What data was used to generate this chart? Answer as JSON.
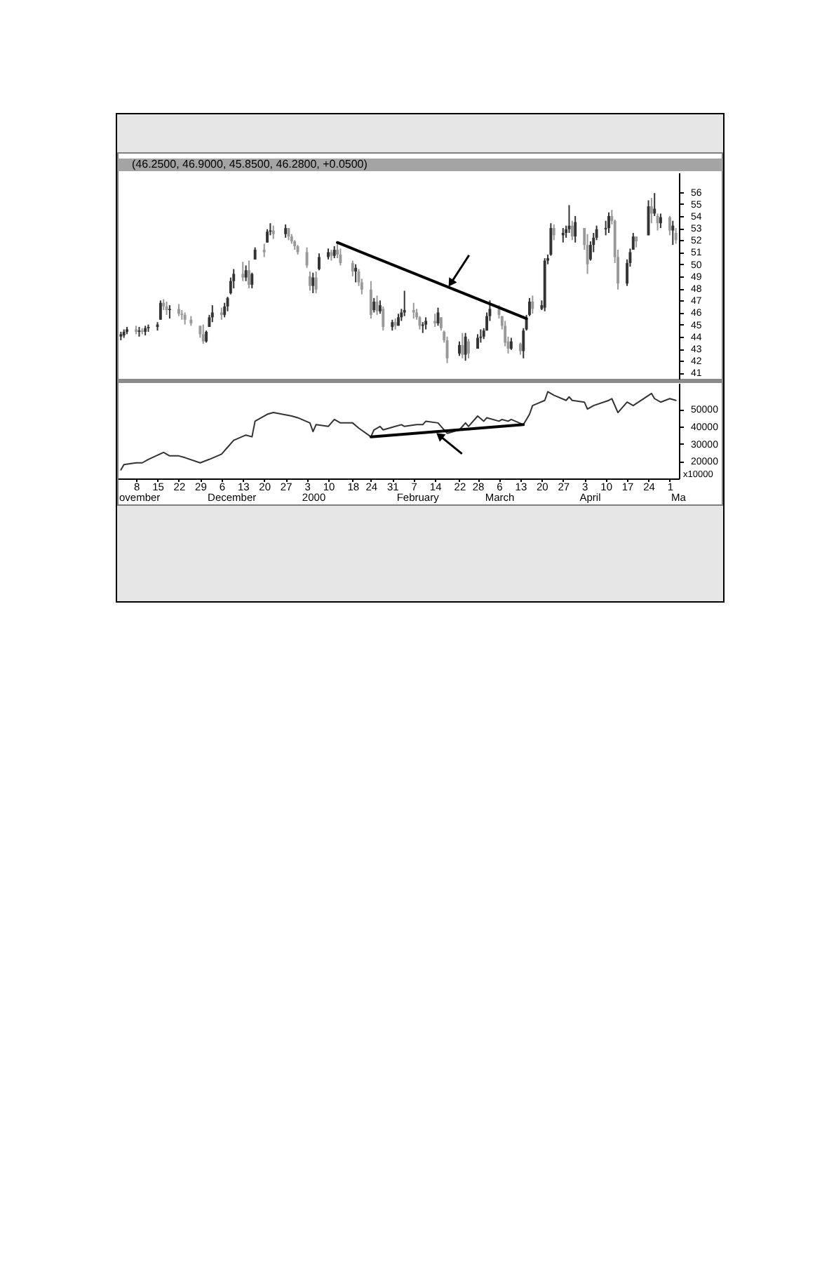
{
  "chart_data": [
    {
      "type": "candlestick",
      "title": "(46.2500, 46.9000, 45.8500, 46.2800, +0.0500)",
      "tick_labels": "y",
      "xlim": [
        "1999-11-02",
        "2000-05-04"
      ],
      "x": [
        "1999-11-03",
        "1999-11-04",
        "1999-11-05",
        "1999-11-08",
        "1999-11-09",
        "1999-11-10",
        "1999-11-11",
        "1999-11-12",
        "1999-11-15",
        "1999-11-16",
        "1999-11-17",
        "1999-11-18",
        "1999-11-19",
        "1999-11-22",
        "1999-11-23",
        "1999-11-24",
        "1999-11-26",
        "1999-11-29",
        "1999-11-30",
        "1999-12-01",
        "1999-12-02",
        "1999-12-03",
        "1999-12-06",
        "1999-12-07",
        "1999-12-08",
        "1999-12-09",
        "1999-12-10",
        "1999-12-13",
        "1999-12-14",
        "1999-12-15",
        "1999-12-16",
        "1999-12-17",
        "1999-12-20",
        "1999-12-21",
        "1999-12-22",
        "1999-12-23",
        "1999-12-27",
        "1999-12-28",
        "1999-12-29",
        "1999-12-30",
        "1999-12-31",
        "2000-01-03",
        "2000-01-04",
        "2000-01-05",
        "2000-01-06",
        "2000-01-07",
        "2000-01-10",
        "2000-01-11",
        "2000-01-12",
        "2000-01-13",
        "2000-01-14",
        "2000-01-18",
        "2000-01-19",
        "2000-01-20",
        "2000-01-21",
        "2000-01-24",
        "2000-01-25",
        "2000-01-26",
        "2000-01-27",
        "2000-01-28",
        "2000-01-31",
        "2000-02-01",
        "2000-02-02",
        "2000-02-03",
        "2000-02-04",
        "2000-02-07",
        "2000-02-08",
        "2000-02-09",
        "2000-02-10",
        "2000-02-11",
        "2000-02-14",
        "2000-02-15",
        "2000-02-16",
        "2000-02-17",
        "2000-02-18",
        "2000-02-22",
        "2000-02-23",
        "2000-02-24",
        "2000-02-25",
        "2000-02-28",
        "2000-02-29",
        "2000-03-01",
        "2000-03-02",
        "2000-03-03",
        "2000-03-06",
        "2000-03-07",
        "2000-03-08",
        "2000-03-09",
        "2000-03-10",
        "2000-03-13",
        "2000-03-14",
        "2000-03-15",
        "2000-03-16",
        "2000-03-17",
        "2000-03-20",
        "2000-03-21",
        "2000-03-22",
        "2000-03-23",
        "2000-03-24",
        "2000-03-27",
        "2000-03-28",
        "2000-03-29",
        "2000-03-30",
        "2000-03-31",
        "2000-04-03",
        "2000-04-04",
        "2000-04-05",
        "2000-04-06",
        "2000-04-07",
        "2000-04-10",
        "2000-04-11",
        "2000-04-12",
        "2000-04-13",
        "2000-04-14",
        "2000-04-17",
        "2000-04-18",
        "2000-04-19",
        "2000-04-20",
        "2000-04-24",
        "2000-04-25",
        "2000-04-26",
        "2000-04-27",
        "2000-04-28",
        "2000-05-01",
        "2000-05-02",
        "2000-05-03"
      ],
      "ohlc": [
        [
          44.0,
          44.4,
          43.7,
          44.2
        ],
        [
          44.1,
          44.6,
          43.9,
          44.4
        ],
        [
          44.4,
          44.8,
          44.2,
          44.6
        ],
        [
          44.6,
          44.9,
          44.2,
          44.4
        ],
        [
          44.4,
          44.8,
          44.0,
          44.5
        ],
        [
          44.5,
          44.7,
          44.2,
          44.4
        ],
        [
          44.4,
          44.9,
          44.1,
          44.7
        ],
        [
          44.7,
          45.0,
          44.4,
          44.8
        ],
        [
          44.8,
          45.2,
          44.5,
          45.0
        ],
        [
          45.4,
          47.0,
          45.4,
          46.8
        ],
        [
          46.8,
          47.1,
          46.2,
          46.5
        ],
        [
          46.5,
          46.9,
          45.8,
          46.2
        ],
        [
          46.2,
          46.6,
          45.5,
          46.3
        ],
        [
          46.3,
          46.7,
          45.7,
          45.9
        ],
        [
          45.9,
          46.2,
          45.4,
          45.8
        ],
        [
          45.8,
          46.0,
          45.0,
          45.4
        ],
        [
          45.4,
          45.7,
          44.9,
          45.1
        ],
        [
          44.9,
          44.9,
          43.9,
          44.2
        ],
        [
          44.2,
          45.0,
          43.4,
          43.6
        ],
        [
          43.6,
          44.5,
          43.5,
          44.4
        ],
        [
          44.8,
          45.8,
          44.8,
          45.6
        ],
        [
          45.6,
          46.6,
          45.2,
          46.0
        ],
        [
          46.0,
          46.4,
          45.4,
          45.8
        ],
        [
          45.8,
          46.8,
          45.6,
          46.5
        ],
        [
          46.5,
          47.3,
          46.1,
          47.2
        ],
        [
          47.6,
          48.9,
          47.5,
          48.6
        ],
        [
          48.6,
          49.6,
          48.0,
          49.2
        ],
        [
          49.2,
          50.2,
          48.6,
          48.9
        ],
        [
          48.9,
          49.9,
          48.6,
          49.5
        ],
        [
          49.5,
          50.3,
          48.0,
          48.3
        ],
        [
          48.3,
          49.3,
          48.0,
          49.2
        ],
        [
          50.4,
          51.4,
          50.4,
          51.2
        ],
        [
          51.2,
          51.7,
          50.6,
          51.0
        ],
        [
          51.8,
          52.9,
          51.8,
          52.7
        ],
        [
          52.7,
          53.4,
          52.4,
          52.8
        ],
        [
          52.8,
          53.2,
          52.1,
          52.5
        ],
        [
          52.5,
          53.3,
          52.2,
          53.0
        ],
        [
          53.0,
          53.0,
          52.0,
          52.3
        ],
        [
          52.3,
          52.5,
          51.7,
          51.9
        ],
        [
          51.9,
          52.0,
          51.2,
          51.5
        ],
        [
          51.5,
          51.6,
          50.8,
          51.0
        ],
        [
          51.0,
          51.4,
          49.7,
          49.9
        ],
        [
          49.0,
          49.4,
          47.8,
          48.2
        ],
        [
          48.2,
          49.3,
          47.6,
          48.9
        ],
        [
          48.9,
          49.4,
          47.6,
          47.9
        ],
        [
          49.6,
          50.9,
          49.5,
          50.6
        ],
        [
          50.6,
          51.3,
          50.4,
          51.0
        ],
        [
          51.0,
          51.2,
          50.3,
          50.7
        ],
        [
          50.7,
          51.5,
          50.5,
          51.2
        ],
        [
          51.2,
          51.8,
          50.5,
          50.8
        ],
        [
          50.8,
          51.3,
          49.9,
          50.1
        ],
        [
          50.1,
          50.3,
          49.0,
          49.4
        ],
        [
          49.4,
          50.0,
          48.5,
          49.7
        ],
        [
          49.4,
          49.6,
          48.2,
          48.5
        ],
        [
          48.5,
          48.8,
          47.5,
          47.9
        ],
        [
          47.9,
          48.6,
          45.5,
          45.8
        ],
        [
          46.2,
          47.2,
          46.0,
          46.9
        ],
        [
          46.9,
          47.4,
          45.8,
          46.1
        ],
        [
          46.1,
          47.0,
          45.9,
          46.6
        ],
        [
          46.3,
          46.5,
          44.5,
          44.8
        ],
        [
          44.8,
          45.4,
          44.5,
          45.2
        ],
        [
          45.2,
          45.5,
          44.6,
          44.9
        ],
        [
          44.9,
          45.9,
          44.9,
          45.6
        ],
        [
          45.6,
          46.3,
          45.3,
          46.0
        ],
        [
          46.0,
          47.8,
          45.7,
          46.2
        ],
        [
          46.2,
          46.8,
          45.5,
          46.0
        ],
        [
          46.0,
          46.3,
          45.4,
          45.6
        ],
        [
          45.6,
          45.7,
          44.6,
          44.9
        ],
        [
          44.9,
          45.2,
          44.3,
          45.0
        ],
        [
          45.0,
          45.6,
          44.6,
          45.3
        ],
        [
          45.3,
          45.9,
          44.8,
          45.1
        ],
        [
          45.1,
          46.4,
          44.9,
          46.0
        ],
        [
          45.6,
          45.6,
          44.5,
          44.7
        ],
        [
          44.4,
          44.5,
          43.5,
          43.7
        ],
        [
          43.7,
          44.0,
          41.8,
          42.2
        ],
        [
          42.6,
          43.6,
          42.4,
          43.3
        ],
        [
          43.3,
          44.3,
          42.2,
          42.5
        ],
        [
          42.5,
          44.3,
          42.0,
          44.0
        ],
        [
          43.6,
          43.8,
          42.2,
          42.6
        ],
        [
          43.0,
          44.2,
          43.0,
          43.9
        ],
        [
          43.9,
          44.6,
          43.5,
          44.0
        ],
        [
          44.0,
          44.7,
          43.8,
          44.5
        ],
        [
          44.5,
          46.0,
          44.5,
          45.7
        ],
        [
          45.7,
          47.0,
          45.3,
          46.3
        ],
        [
          46.3,
          46.6,
          45.5,
          45.8
        ],
        [
          45.7,
          45.7,
          44.6,
          44.9
        ],
        [
          44.9,
          45.3,
          43.2,
          43.5
        ],
        [
          43.6,
          44.0,
          42.6,
          43.0
        ],
        [
          43.0,
          43.9,
          42.9,
          43.6
        ],
        [
          43.4,
          43.5,
          42.5,
          42.8
        ],
        [
          42.8,
          44.7,
          42.2,
          44.5
        ],
        [
          44.6,
          45.8,
          44.5,
          45.5
        ],
        [
          45.8,
          47.2,
          45.7,
          46.9
        ],
        [
          46.9,
          47.4,
          45.9,
          46.3
        ],
        [
          46.3,
          47.0,
          46.2,
          46.6
        ],
        [
          46.4,
          50.5,
          46.1,
          50.3
        ],
        [
          50.3,
          50.8,
          50.0,
          50.5
        ],
        [
          50.8,
          53.4,
          50.7,
          53.0
        ],
        [
          53.0,
          53.3,
          52.0,
          52.4
        ],
        [
          52.4,
          53.0,
          51.8,
          52.6
        ],
        [
          52.6,
          53.2,
          52.2,
          52.9
        ],
        [
          52.9,
          54.9,
          52.6,
          53.2
        ],
        [
          53.2,
          53.6,
          52.0,
          52.3
        ],
        [
          52.3,
          54.0,
          51.8,
          53.5
        ],
        [
          53.0,
          53.0,
          51.2,
          51.6
        ],
        [
          51.6,
          52.5,
          49.2,
          50.0
        ],
        [
          50.4,
          51.9,
          50.3,
          51.6
        ],
        [
          51.6,
          52.6,
          51.0,
          52.2
        ],
        [
          52.2,
          53.2,
          52.0,
          52.9
        ],
        [
          52.9,
          53.6,
          52.4,
          53.0
        ],
        [
          53.0,
          54.3,
          52.6,
          54.0
        ],
        [
          54.0,
          54.5,
          53.3,
          53.6
        ],
        [
          53.6,
          53.7,
          50.1,
          50.6
        ],
        [
          50.6,
          51.2,
          47.9,
          48.4
        ],
        [
          48.4,
          50.4,
          48.2,
          50.1
        ],
        [
          50.1,
          51.3,
          49.8,
          51.0
        ],
        [
          51.2,
          52.6,
          51.2,
          52.3
        ],
        [
          52.3,
          52.3,
          51.4,
          51.9
        ],
        [
          52.4,
          55.3,
          52.4,
          54.8
        ],
        [
          54.8,
          55.5,
          53.4,
          54.2
        ],
        [
          54.2,
          55.9,
          54.0,
          54.6
        ],
        [
          54.0,
          54.2,
          52.8,
          53.4
        ],
        [
          53.4,
          54.2,
          53.0,
          53.9
        ],
        [
          53.9,
          54.0,
          52.4,
          52.8
        ],
        [
          52.8,
          53.6,
          51.6,
          53.2
        ],
        [
          52.6,
          53.0,
          51.7,
          52.0
        ]
      ],
      "colors": [
        "#333333",
        "#333333",
        "#333333",
        "#999999",
        "#333333",
        "#999999",
        "#333333",
        "#333333",
        "#333333",
        "#333333",
        "#999999",
        "#999999",
        "#333333",
        "#999999",
        "#999999",
        "#999999",
        "#999999",
        "#999999",
        "#999999",
        "#333333",
        "#333333",
        "#333333",
        "#999999",
        "#333333",
        "#333333",
        "#333333",
        "#333333",
        "#999999",
        "#333333",
        "#999999",
        "#333333",
        "#333333",
        "#999999",
        "#333333",
        "#333333",
        "#999999",
        "#333333",
        "#999999",
        "#999999",
        "#999999",
        "#999999",
        "#999999",
        "#999999",
        "#333333",
        "#999999",
        "#333333",
        "#333333",
        "#999999",
        "#333333",
        "#999999",
        "#999999",
        "#999999",
        "#333333",
        "#999999",
        "#999999",
        "#999999",
        "#333333",
        "#999999",
        "#333333",
        "#999999",
        "#333333",
        "#999999",
        "#333333",
        "#333333",
        "#333333",
        "#999999",
        "#999999",
        "#999999",
        "#333333",
        "#333333",
        "#999999",
        "#333333",
        "#999999",
        "#999999",
        "#999999",
        "#333333",
        "#999999",
        "#333333",
        "#999999",
        "#333333",
        "#333333",
        "#333333",
        "#333333",
        "#333333",
        "#999999",
        "#999999",
        "#999999",
        "#999999",
        "#333333",
        "#999999",
        "#333333",
        "#333333",
        "#333333",
        "#999999",
        "#333333",
        "#333333",
        "#333333",
        "#333333",
        "#999999",
        "#333333",
        "#333333",
        "#333333",
        "#999999",
        "#333333",
        "#999999",
        "#999999",
        "#333333",
        "#333333",
        "#333333",
        "#333333",
        "#333333",
        "#999999",
        "#999999",
        "#999999",
        "#333333",
        "#333333",
        "#333333",
        "#999999",
        "#333333",
        "#999999",
        "#333333",
        "#999999",
        "#333333",
        "#999999",
        "#333333",
        "#999999"
      ],
      "series": [
        {
          "type": "line",
          "color": "#000000",
          "x": [
            "2000-01-13",
            "2000-03-15"
          ],
          "values": [
            51.8,
            45.5
          ]
        }
      ],
      "ylim": [
        40.5,
        57.6
      ],
      "yticks": [
        41,
        42,
        43,
        44,
        45,
        46,
        47,
        48,
        49,
        50,
        51,
        52,
        53,
        54,
        55,
        56
      ]
    },
    {
      "type": "line",
      "xlim": [
        "1999-11-02",
        "2000-05-04"
      ],
      "series": [
        {
          "type": "line",
          "color": "#333333",
          "x": [
            "1999-11-03",
            "1999-11-04",
            "1999-11-08",
            "1999-11-10",
            "1999-11-12",
            "1999-11-17",
            "1999-11-19",
            "1999-11-22",
            "1999-11-24",
            "1999-11-29",
            "1999-12-02",
            "1999-12-06",
            "1999-12-08",
            "1999-12-10",
            "1999-12-14",
            "1999-12-16",
            "1999-12-17",
            "1999-12-21",
            "1999-12-23",
            "1999-12-29",
            "1999-12-31",
            "2000-01-04",
            "2000-01-05",
            "2000-01-06",
            "2000-01-10",
            "2000-01-12",
            "2000-01-14",
            "2000-01-18",
            "2000-01-20",
            "2000-01-24",
            "2000-01-25",
            "2000-01-27",
            "2000-01-28",
            "2000-02-01",
            "2000-02-03",
            "2000-02-04",
            "2000-02-08",
            "2000-02-10",
            "2000-02-11",
            "2000-02-15",
            "2000-02-16",
            "2000-02-18",
            "2000-02-22",
            "2000-02-24",
            "2000-02-25",
            "2000-02-28",
            "2000-03-01",
            "2000-03-02",
            "2000-03-06",
            "2000-03-07",
            "2000-03-09",
            "2000-03-10",
            "2000-03-14",
            "2000-03-16",
            "2000-03-17",
            "2000-03-21",
            "2000-03-22",
            "2000-03-24",
            "2000-03-28",
            "2000-03-29",
            "2000-03-30",
            "2000-04-03",
            "2000-04-04",
            "2000-04-06",
            "2000-04-11",
            "2000-04-12",
            "2000-04-14",
            "2000-04-17",
            "2000-04-19",
            "2000-04-25",
            "2000-04-26",
            "2000-04-28",
            "2000-05-01",
            "2000-05-03"
          ],
          "values": [
            15000,
            18000,
            19000,
            19000,
            21000,
            25000,
            23000,
            23000,
            22000,
            19000,
            21000,
            24000,
            28000,
            32000,
            35000,
            34000,
            43000,
            47000,
            48000,
            46000,
            45000,
            42000,
            37000,
            41000,
            40000,
            44000,
            42000,
            42000,
            39000,
            34000,
            38000,
            40000,
            38000,
            40000,
            41000,
            40000,
            41000,
            41000,
            43000,
            42000,
            40000,
            36000,
            38000,
            42000,
            40000,
            46000,
            43000,
            45000,
            43000,
            44000,
            43000,
            44000,
            41000,
            47000,
            52000,
            55000,
            60000,
            58000,
            55000,
            57000,
            55000,
            54000,
            50000,
            52000,
            55000,
            56000,
            48000,
            54000,
            52000,
            59000,
            56000,
            54000,
            56000,
            55000
          ]
        },
        {
          "type": "line",
          "color": "#000000",
          "x": [
            "2000-01-24",
            "2000-03-14"
          ],
          "values": [
            34000,
            41000
          ]
        }
      ],
      "ylim": [
        10000,
        65000
      ],
      "yticks": [
        20000,
        30000,
        40000,
        50000
      ],
      "xticks": [
        {
          "value": "1999-11-08",
          "label": "8"
        },
        {
          "value": "1999-11-15",
          "label": "15"
        },
        {
          "value": "1999-11-22",
          "label": "22"
        },
        {
          "value": "1999-11-29",
          "label": "29"
        },
        {
          "value": "1999-12-06",
          "label": "6"
        },
        {
          "value": "1999-12-13",
          "label": "13"
        },
        {
          "value": "1999-12-20",
          "label": "20"
        },
        {
          "value": "1999-12-27",
          "label": "27"
        },
        {
          "value": "2000-01-03",
          "label": "3"
        },
        {
          "value": "2000-01-10",
          "label": "10"
        },
        {
          "value": "2000-01-18",
          "label": "18"
        },
        {
          "value": "2000-01-24",
          "label": "24"
        },
        {
          "value": "2000-01-31",
          "label": "31"
        },
        {
          "value": "2000-02-07",
          "label": "7"
        },
        {
          "value": "2000-02-14",
          "label": "14"
        },
        {
          "value": "2000-02-22",
          "label": "22"
        },
        {
          "value": "2000-02-28",
          "label": "28"
        },
        {
          "value": "2000-03-06",
          "label": "6"
        },
        {
          "value": "2000-03-13",
          "label": "13"
        },
        {
          "value": "2000-03-20",
          "label": "20"
        },
        {
          "value": "2000-03-27",
          "label": "27"
        },
        {
          "value": "2000-04-03",
          "label": "3"
        },
        {
          "value": "2000-04-10",
          "label": "10"
        },
        {
          "value": "2000-04-17",
          "label": "17"
        },
        {
          "value": "2000-04-24",
          "label": "24"
        },
        {
          "value": "2000-05-01",
          "label": "1"
        }
      ],
      "annotations": [
        "ovember",
        "December",
        "2000",
        "February",
        "March",
        "April",
        "Ma",
        "x10000"
      ]
    }
  ]
}
